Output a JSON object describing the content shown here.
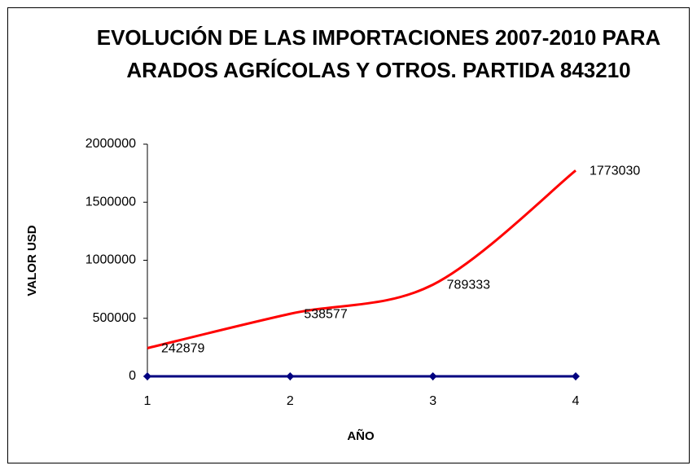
{
  "chart_data": {
    "type": "line",
    "title": "EVOLUCIÓN DE LAS IMPORTACIONES 2007-2010 PARA ARADOS AGRÍCOLAS Y OTROS. PARTIDA 843210",
    "x_label": "AÑO",
    "y_label": "VALOR USD",
    "x": [
      1,
      2,
      3,
      4
    ],
    "series": [
      {
        "color": "#ff0000",
        "values": [
          242879,
          538577,
          789333,
          1773030
        ],
        "smooth": true,
        "data_labels": true
      },
      {
        "color": "#000080",
        "values": [
          0,
          0,
          0,
          0
        ],
        "marker": "diamond"
      }
    ],
    "xlim": [
      1,
      4
    ],
    "xticks": [
      1,
      2,
      3,
      4
    ],
    "ylim": [
      0,
      2000000
    ],
    "yticks": [
      0,
      500000,
      1000000,
      1500000,
      2000000
    ],
    "grid": false
  }
}
